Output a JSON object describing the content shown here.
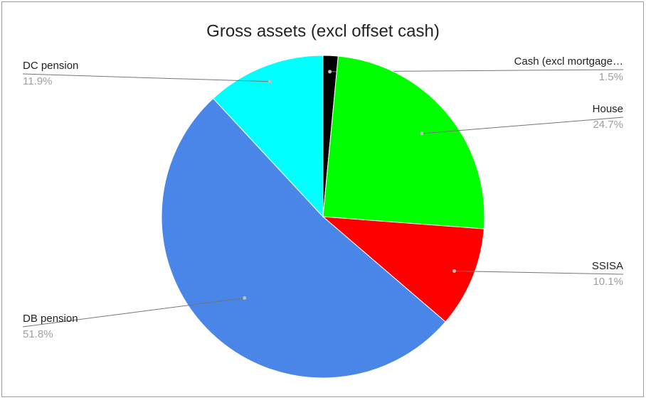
{
  "chart_data": {
    "type": "pie",
    "title": "Gross assets (excl offset cash)",
    "categories": [
      "Cash (excl mortgage…",
      "House",
      "SSISA",
      "DB pension",
      "DC pension"
    ],
    "values": [
      1.5,
      24.7,
      10.1,
      51.8,
      11.9
    ],
    "value_labels": [
      "1.5%",
      "24.7%",
      "10.1%",
      "51.8%",
      "11.9%"
    ],
    "colors": [
      "#000000",
      "#00ff00",
      "#ff0000",
      "#4a86e8",
      "#00ffff"
    ]
  }
}
